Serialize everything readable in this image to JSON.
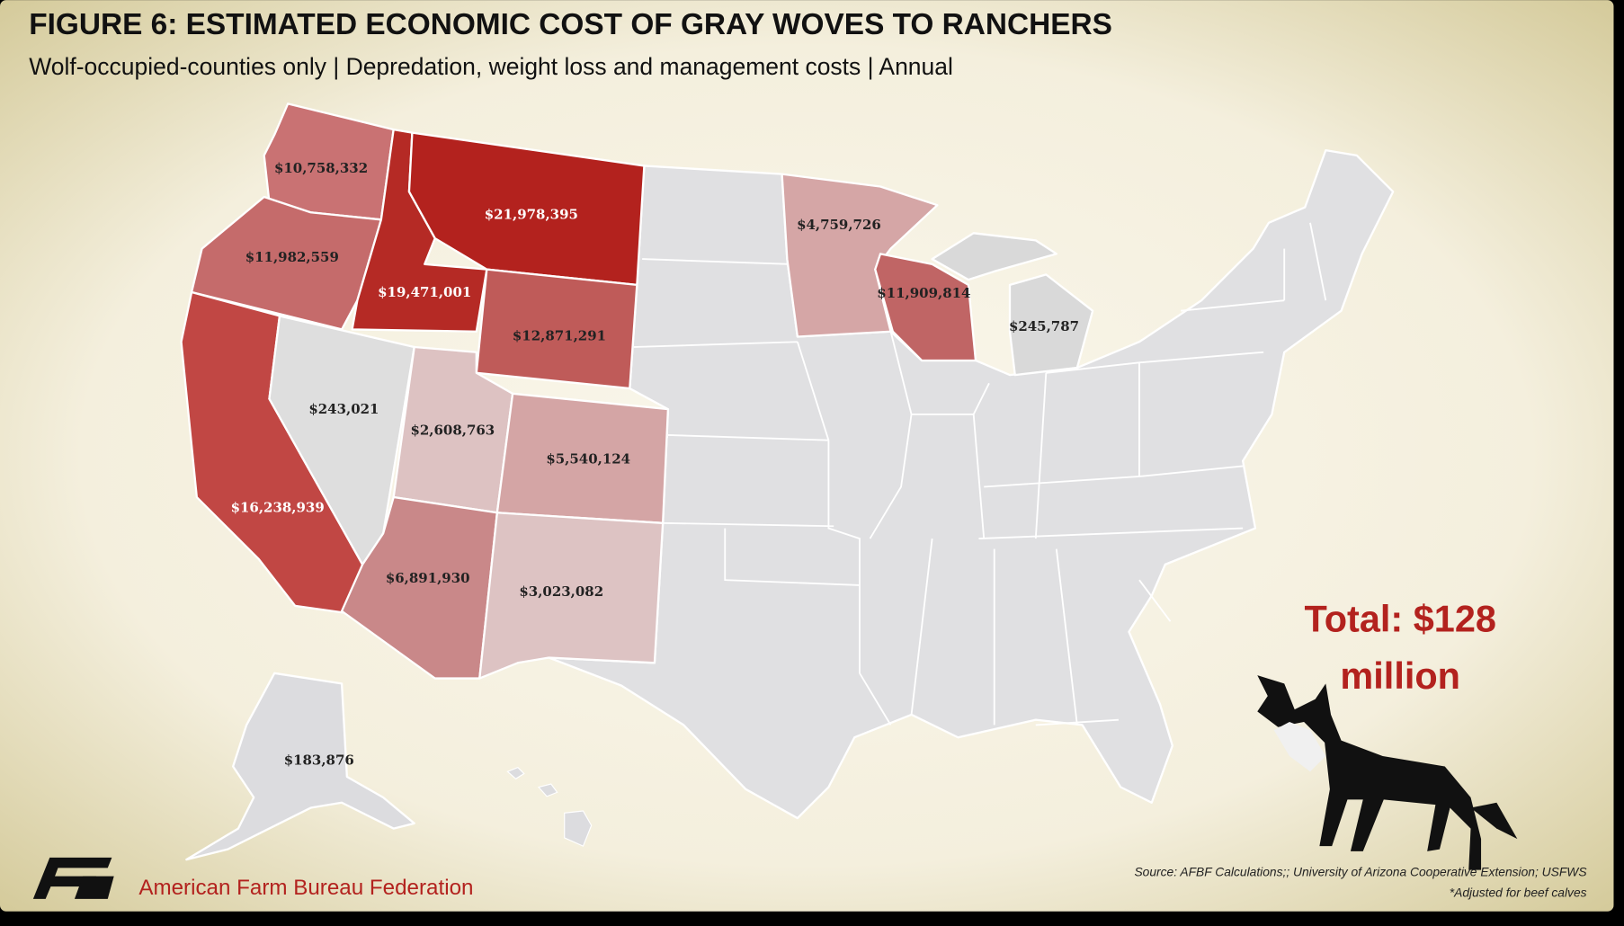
{
  "header": {
    "title": "FIGURE 6: ESTIMATED ECONOMIC COST OF GRAY WOVES TO RANCHERS",
    "subtitle": "Wolf-occupied-counties only | Depredation, weight loss and management costs | Annual"
  },
  "map": {
    "regions": [
      {
        "label": "$10,758,332",
        "color": "#c97273"
      },
      {
        "label": "$11,982,559",
        "color": "#c56b6b"
      },
      {
        "label": "$21,978,395",
        "color": "#b3221e"
      },
      {
        "label": "$19,471,001",
        "color": "#b52a25"
      },
      {
        "label": "$12,871,291",
        "color": "#bf5b59"
      },
      {
        "label": "$243,021",
        "color": "#dedede"
      },
      {
        "label": "$2,608,763",
        "color": "#ddc2c2"
      },
      {
        "label": "$5,540,124",
        "color": "#d4a5a5"
      },
      {
        "label": "$16,238,939",
        "color": "#c14744"
      },
      {
        "label": "$6,891,930",
        "color": "#c98889"
      },
      {
        "label": "$3,023,082",
        "color": "#ddc3c3"
      },
      {
        "label": "$4,759,726",
        "color": "#d5a6a6"
      },
      {
        "label": "$11,909,814",
        "color": "#c06565"
      },
      {
        "label": "$245,787",
        "color": "#d9d9d9"
      },
      {
        "label": "$183,876",
        "color": "#dcdcdf"
      }
    ],
    "total": [
      "Total: $128",
      "million"
    ]
  },
  "footer": {
    "organization": "American Farm Bureau Federation",
    "source": "Source: AFBF Calculations;; University of Arizona Cooperative Extension; USFWS",
    "note": "*Adjusted for beef calves"
  }
}
